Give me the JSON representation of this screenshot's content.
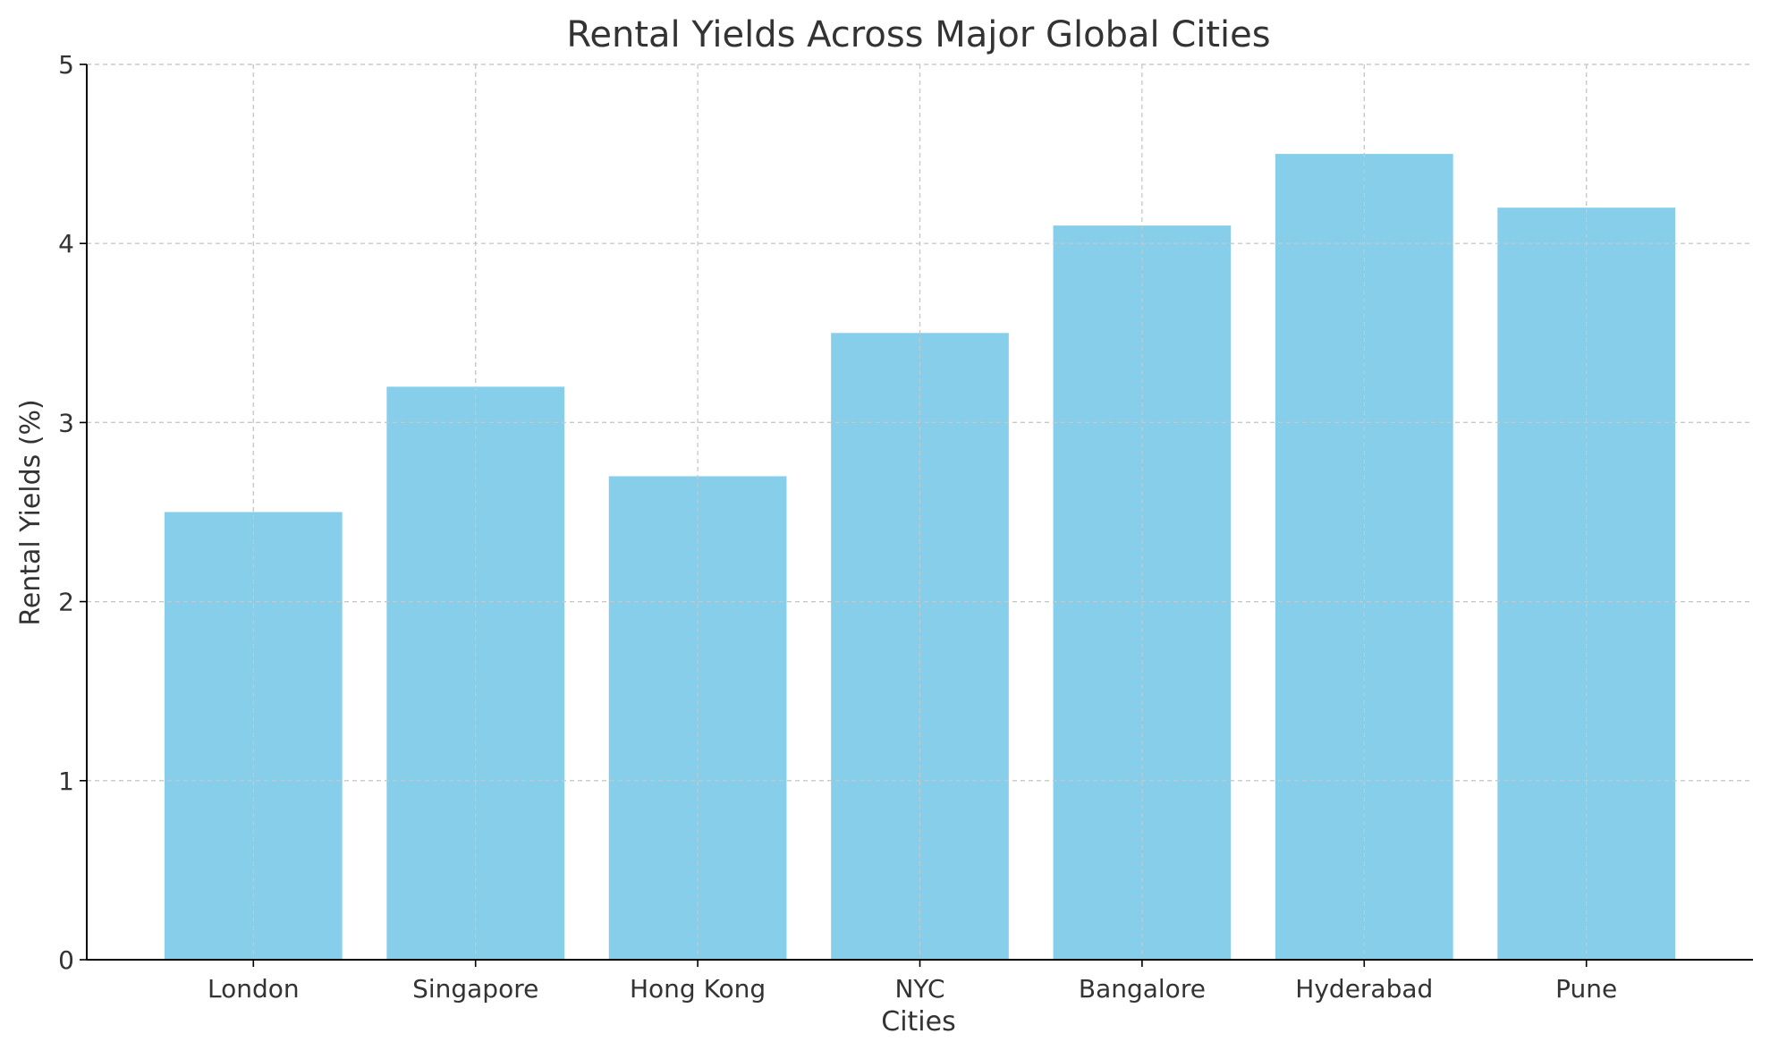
{
  "chart_data": {
    "type": "bar",
    "title": "Rental Yields Across Major Global Cities",
    "xlabel": "Cities",
    "ylabel": "Rental Yields (%)",
    "categories": [
      "London",
      "Singapore",
      "Hong Kong",
      "NYC",
      "Bangalore",
      "Hyderabad",
      "Pune"
    ],
    "values": [
      2.5,
      3.2,
      2.7,
      3.5,
      4.1,
      4.5,
      4.2
    ],
    "ylim": [
      0,
      5
    ],
    "yticks": [
      0,
      1,
      2,
      3,
      4,
      5
    ],
    "grid": true,
    "bar_color": "#87CEEB",
    "grid_color": "#c8c8c8",
    "axis_color": "#000000",
    "text_color": "#333333"
  }
}
